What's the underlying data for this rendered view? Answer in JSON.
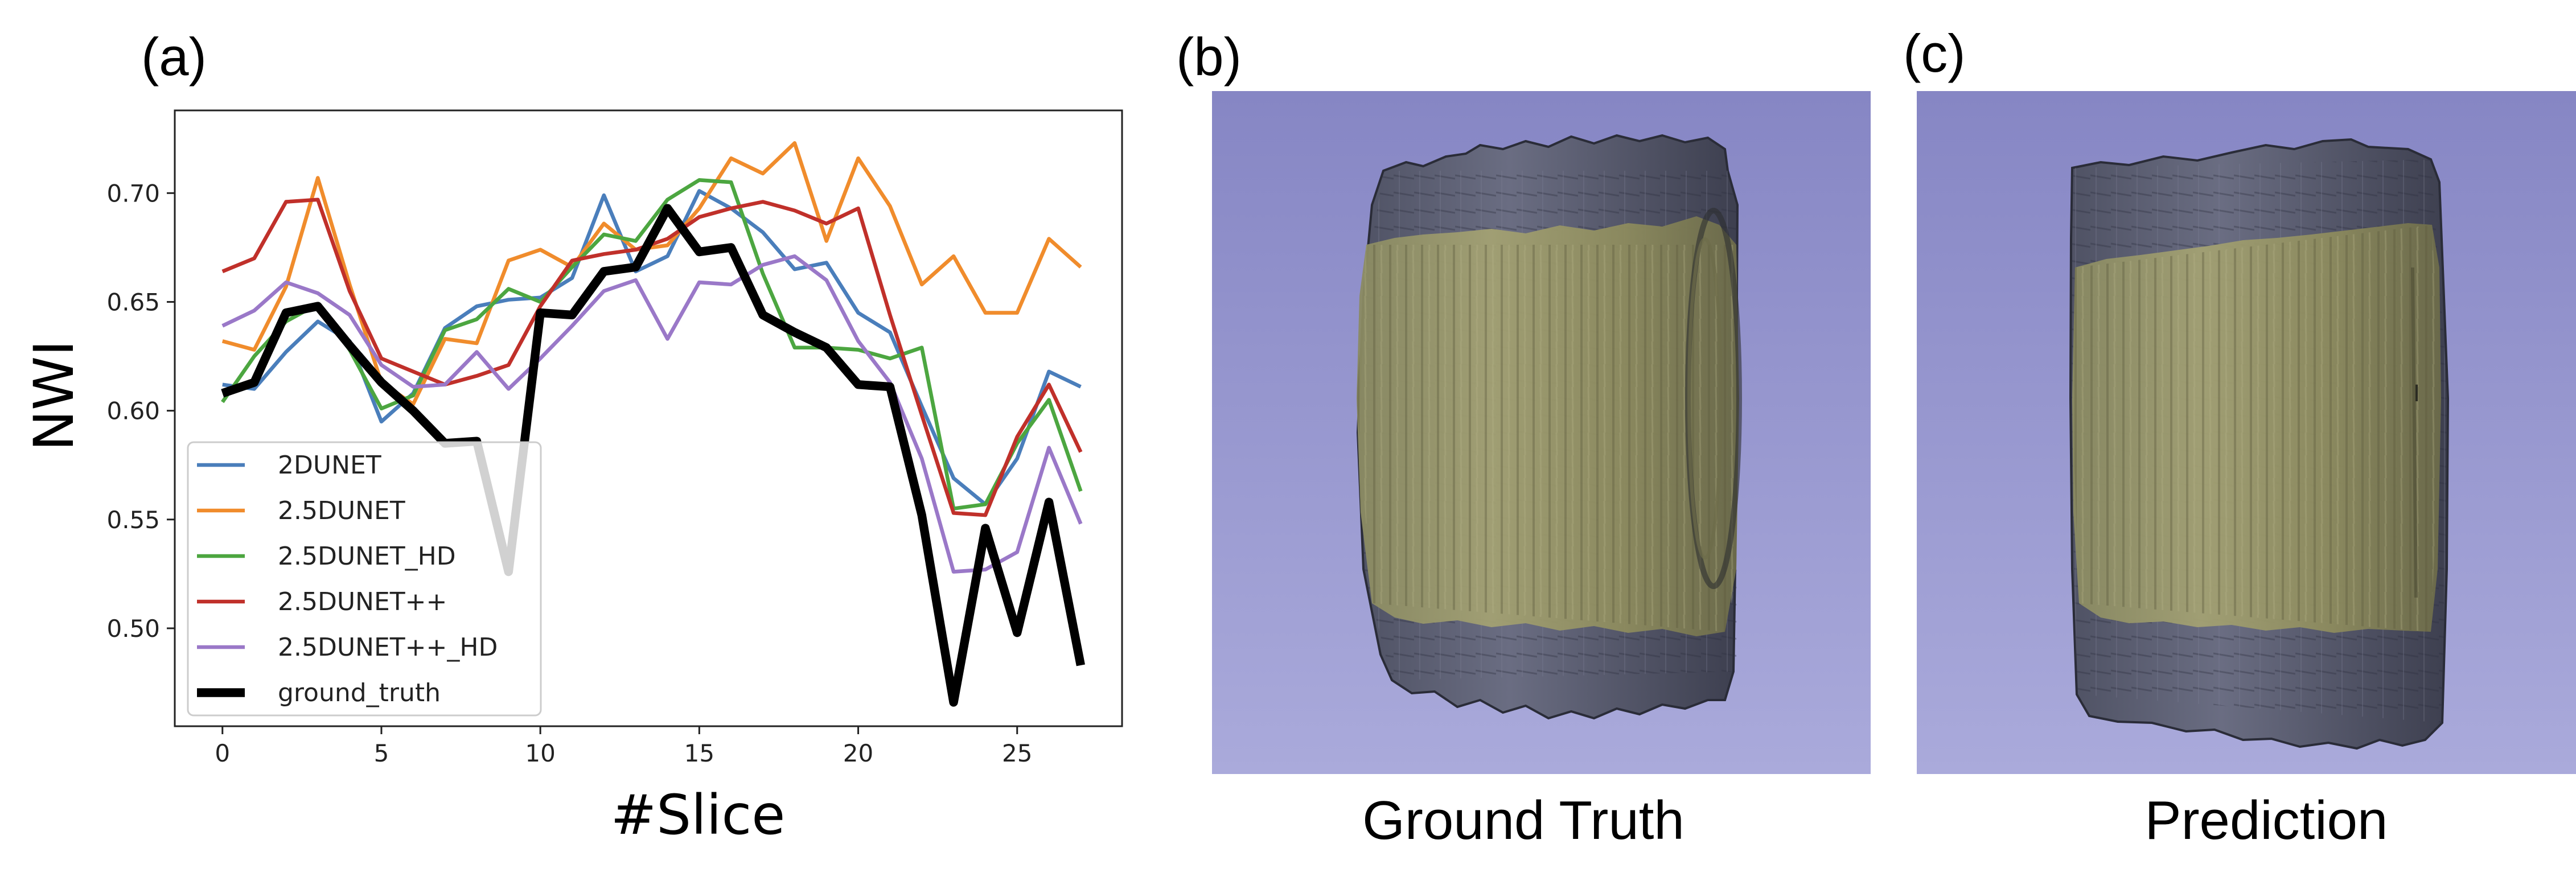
{
  "panels": {
    "a_label": "(a)",
    "b_label": "(b)",
    "c_label": "(c)",
    "b_caption": "Ground Truth",
    "c_caption": "Prediction"
  },
  "colors": {
    "render_bg_top": "#8686c4",
    "render_bg_bottom": "#a9a9d8",
    "vessel_wall": "#5f6276",
    "vessel_lumen": "#8c8a5c"
  },
  "chart_data": {
    "type": "line",
    "xlabel": "#Slice",
    "ylabel": "NWI",
    "xlim": [
      -1.5,
      28.3
    ],
    "ylim": [
      0.455,
      0.738
    ],
    "xticks": [
      0,
      5,
      10,
      15,
      20,
      25
    ],
    "yticks": [
      0.5,
      0.55,
      0.6,
      0.65,
      0.7
    ],
    "ytick_labels": [
      "0.50",
      "0.55",
      "0.60",
      "0.65",
      "0.70"
    ],
    "grid": false,
    "legend_position": "lower-left",
    "x": [
      0,
      1,
      2,
      3,
      4,
      5,
      6,
      7,
      8,
      9,
      10,
      11,
      12,
      13,
      14,
      15,
      16,
      17,
      18,
      19,
      20,
      21,
      22,
      23,
      24,
      25,
      26,
      27
    ],
    "series": [
      {
        "name": "2DUNET",
        "color": "#4a7ebb",
        "width": 3,
        "values": [
          0.612,
          0.61,
          0.627,
          0.641,
          0.632,
          0.595,
          0.608,
          0.638,
          0.648,
          0.651,
          0.652,
          0.661,
          0.699,
          0.664,
          0.671,
          0.701,
          0.693,
          0.682,
          0.665,
          0.668,
          0.645,
          0.636,
          0.602,
          0.569,
          0.557,
          0.578,
          0.618,
          0.611
        ]
      },
      {
        "name": "2.5DUNET",
        "color": "#f08c2c",
        "width": 3,
        "values": [
          0.632,
          0.628,
          0.657,
          0.707,
          0.658,
          0.613,
          0.603,
          0.633,
          0.631,
          0.669,
          0.674,
          0.666,
          0.686,
          0.674,
          0.676,
          0.693,
          0.716,
          0.709,
          0.723,
          0.678,
          0.716,
          0.694,
          0.658,
          0.671,
          0.645,
          0.645,
          0.679,
          0.666
        ]
      },
      {
        "name": "2.5DUNET_HD",
        "color": "#4ca640",
        "width": 3,
        "values": [
          0.604,
          0.625,
          0.641,
          0.649,
          0.628,
          0.601,
          0.607,
          0.637,
          0.642,
          0.656,
          0.65,
          0.666,
          0.681,
          0.678,
          0.697,
          0.706,
          0.705,
          0.663,
          0.629,
          0.629,
          0.628,
          0.624,
          0.629,
          0.555,
          0.557,
          0.585,
          0.605,
          0.563
        ]
      },
      {
        "name": "2.5DUNET++",
        "color": "#c0302a",
        "width": 3,
        "values": [
          0.664,
          0.67,
          0.696,
          0.697,
          0.655,
          0.624,
          0.618,
          0.612,
          0.616,
          0.621,
          0.648,
          0.669,
          0.672,
          0.674,
          0.679,
          0.689,
          0.693,
          0.696,
          0.692,
          0.686,
          0.693,
          0.644,
          0.598,
          0.553,
          0.552,
          0.588,
          0.612,
          0.581
        ]
      },
      {
        "name": "2.5DUNET++_HD",
        "color": "#9a78c8",
        "width": 3,
        "values": [
          0.639,
          0.646,
          0.659,
          0.654,
          0.644,
          0.621,
          0.611,
          0.612,
          0.627,
          0.61,
          0.624,
          0.639,
          0.655,
          0.66,
          0.633,
          0.659,
          0.658,
          0.667,
          0.671,
          0.66,
          0.632,
          0.613,
          0.578,
          0.526,
          0.527,
          0.535,
          0.583,
          0.548
        ]
      },
      {
        "name": "ground_truth",
        "color": "#000000",
        "width": 7,
        "values": [
          0.608,
          0.613,
          0.645,
          0.648,
          0.63,
          0.613,
          0.6,
          0.585,
          0.586,
          0.526,
          0.645,
          0.644,
          0.664,
          0.666,
          0.693,
          0.673,
          0.675,
          0.644,
          0.636,
          0.629,
          0.612,
          0.611,
          0.552,
          0.466,
          0.546,
          0.498,
          0.558,
          0.483
        ]
      }
    ]
  }
}
